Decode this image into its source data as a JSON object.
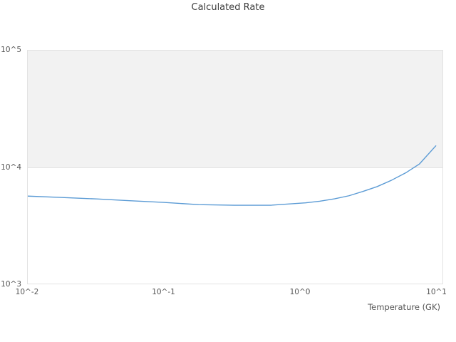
{
  "chart_data": {
    "type": "line",
    "title": "Calculated Rate",
    "xlabel": "Temperature (GK)",
    "ylabel": "",
    "x_scale": "log",
    "y_scale": "log",
    "xlim": [
      0.01,
      11.2
    ],
    "ylim": [
      1000,
      100000
    ],
    "x_tick_values": [
      0.01,
      0.1,
      1,
      10
    ],
    "x_tick_labels": [
      "10^-2",
      "10^-1",
      "10^0",
      "10^1"
    ],
    "y_tick_values": [
      1000,
      10000,
      100000
    ],
    "y_tick_labels": [
      "10^3",
      "10^4",
      "10^5"
    ],
    "grid": "off",
    "legend": "none",
    "band": {
      "from": 10000,
      "to": 100000,
      "color": "#f2f2f2",
      "edge_color": "#e2e2e2"
    },
    "series": [
      {
        "name": "calculated-rate",
        "color": "#5b9bd5",
        "x": [
          0.01,
          0.018,
          0.032,
          0.056,
          0.1,
          0.18,
          0.33,
          0.61,
          1.1,
          1.4,
          1.8,
          2.3,
          2.9,
          3.7,
          4.7,
          6.0,
          7.6,
          10
        ],
        "values": [
          5630,
          5480,
          5330,
          5140,
          4970,
          4760,
          4700,
          4700,
          4930,
          5090,
          5340,
          5670,
          6170,
          6800,
          7690,
          8920,
          10650,
          15220
        ]
      }
    ],
    "colors": {
      "background": "#ffffff",
      "plot_border": "#e2e2e2",
      "band_fill": "#f2f2f2",
      "line": "#5b9bd5",
      "title_text": "#3d3d3d",
      "tick_text": "#555555"
    }
  }
}
